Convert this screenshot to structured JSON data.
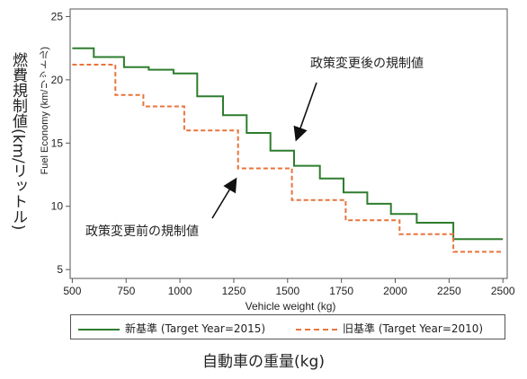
{
  "chart_data": {
    "type": "line",
    "step": true,
    "xlabel": "Vehicle weight (kg)",
    "ylabel": "Fuel Economy (km/リットル)",
    "ylabel_jp": "燃費規制値(km/リットル)",
    "bottom_title": "自動車の重量(kg)",
    "xlim": [
      490,
      2520
    ],
    "ylim": [
      4.3,
      25.6
    ],
    "xticks": [
      500,
      750,
      1000,
      1250,
      1500,
      1750,
      2000,
      2250,
      2500
    ],
    "yticks": [
      5,
      10,
      15,
      20,
      25
    ],
    "grid": false,
    "legend_position": "bottom",
    "series": [
      {
        "name": "新基準 (Target Year=2015)",
        "color": "#2e7d2e",
        "style": "solid",
        "x": [
          500,
          600,
          600,
          740,
          740,
          855,
          855,
          970,
          970,
          1080,
          1080,
          1200,
          1200,
          1310,
          1310,
          1420,
          1420,
          1530,
          1530,
          1650,
          1650,
          1760,
          1760,
          1870,
          1870,
          1980,
          1980,
          2100,
          2100,
          2270,
          2270,
          2500
        ],
        "y": [
          22.5,
          22.5,
          21.8,
          21.8,
          21.0,
          21.0,
          20.8,
          20.8,
          20.5,
          20.5,
          18.7,
          18.7,
          17.2,
          17.2,
          15.8,
          15.8,
          14.4,
          14.4,
          13.2,
          13.2,
          12.2,
          12.2,
          11.1,
          11.1,
          10.2,
          10.2,
          9.4,
          9.4,
          8.7,
          8.7,
          7.4,
          7.4
        ]
      },
      {
        "name": "旧基準 (Target Year=2010)",
        "color": "#e8743b",
        "style": "dashed",
        "x": [
          500,
          700,
          700,
          830,
          830,
          1020,
          1020,
          1270,
          1270,
          1520,
          1520,
          1770,
          1770,
          2020,
          2020,
          2270,
          2270,
          2500
        ],
        "y": [
          21.2,
          21.2,
          18.8,
          18.8,
          17.9,
          17.9,
          16.0,
          16.0,
          13.0,
          13.0,
          10.5,
          10.5,
          8.9,
          8.9,
          7.8,
          7.8,
          6.4,
          6.4
        ]
      }
    ],
    "annotations": [
      {
        "text": "政策変更後の規制値",
        "arrow_to": [
          1500,
          15.2
        ]
      },
      {
        "text": "政策変更前の規制値",
        "arrow_to": [
          1270,
          12.3
        ]
      }
    ]
  }
}
